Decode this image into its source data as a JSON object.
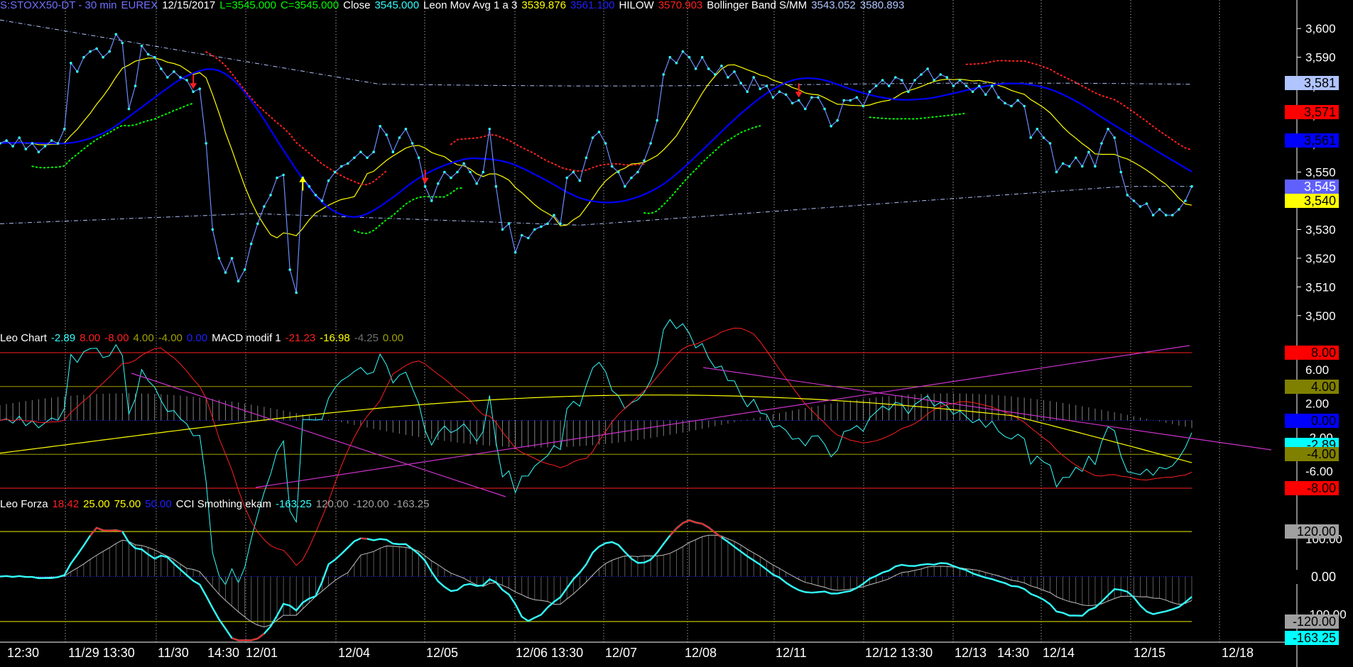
{
  "price_header": [
    {
      "text": "S:STOXX50-DT - 30 min",
      "color": "#7070ff"
    },
    {
      "text": "EUREX",
      "color": "#7070ff"
    },
    {
      "text": "12/15/2017",
      "color": "#ffffff"
    },
    {
      "text": "L=3545.000",
      "color": "#00ff00"
    },
    {
      "text": "C=3545.000",
      "color": "#00ff00"
    },
    {
      "text": "Close",
      "color": "#ffffff"
    },
    {
      "text": "3545.000",
      "color": "#33ffff"
    },
    {
      "text": "Leon Mov Avg 1 a 3",
      "color": "#ffffff"
    },
    {
      "text": "3539.876",
      "color": "#ffff00"
    },
    {
      "text": "3561.100",
      "color": "#2020ff"
    },
    {
      "text": "HILOW",
      "color": "#ffffff"
    },
    {
      "text": "3570.903",
      "color": "#ff2020"
    },
    {
      "text": "Bollinger Band S/MM",
      "color": "#ffffff"
    },
    {
      "text": "3543.052",
      "color": "#b0c4ff"
    },
    {
      "text": "3580.893",
      "color": "#b0c4ff"
    }
  ],
  "macd_header": [
    {
      "text": "Leo Chart",
      "color": "#ffffff"
    },
    {
      "text": "-2.89",
      "color": "#33ffff"
    },
    {
      "text": "8.00",
      "color": "#ff2020"
    },
    {
      "text": "-8.00",
      "color": "#ff2020"
    },
    {
      "text": "4.00",
      "color": "#a0a000"
    },
    {
      "text": "-4.00",
      "color": "#a0a000"
    },
    {
      "text": "0.00",
      "color": "#2020ff"
    },
    {
      "text": "MACD modif 1",
      "color": "#ffffff"
    },
    {
      "text": "-21.23",
      "color": "#ff2020"
    },
    {
      "text": "-16.98",
      "color": "#ffff00"
    },
    {
      "text": "-4.25",
      "color": "#707070"
    },
    {
      "text": "0.00",
      "color": "#a0a000"
    }
  ],
  "cci_header": [
    {
      "text": "Leo Forza",
      "color": "#ffffff"
    },
    {
      "text": "18.42",
      "color": "#ff2020"
    },
    {
      "text": "25.00",
      "color": "#ffff00"
    },
    {
      "text": "75.00",
      "color": "#ffff00"
    },
    {
      "text": "50.00",
      "color": "#2020ff"
    },
    {
      "text": "CCI Smothing ekam",
      "color": "#ffffff"
    },
    {
      "text": "-163.25",
      "color": "#33ffff"
    },
    {
      "text": "120.00",
      "color": "#a0a0a0"
    },
    {
      "text": "-120.00",
      "color": "#a0a0a0"
    },
    {
      "text": "-163.25",
      "color": "#a0a0a0"
    }
  ],
  "x_axis_labels": [
    "12:30",
    "11/29 13:30",
    "11/30",
    "14:30",
    "12/01",
    "12/04",
    "12/05",
    "12/06 13:30",
    "12/07",
    "12/08",
    "12/11",
    "12/12 13:30",
    "12/13",
    "14:30",
    "12/14",
    "12/15",
    "12/18"
  ],
  "price_axis_ticks": [
    "3,600",
    "3,590",
    "3,580",
    "3,570",
    "3,560",
    "3,550",
    "3,540",
    "3,530",
    "3,520",
    "3,510",
    "3,500"
  ],
  "price_tags": [
    {
      "text": "3,581",
      "bg": "#b0c4ff",
      "fg": "#000000",
      "value": 3581
    },
    {
      "text": "3,571",
      "bg": "#ff0000",
      "fg": "#000000",
      "value": 3571
    },
    {
      "text": "3,561",
      "bg": "#0000ff",
      "fg": "#000000",
      "value": 3561
    },
    {
      "text": "3,545",
      "bg": "#6060ff",
      "fg": "#ffffff",
      "value": 3545
    },
    {
      "text": "3,540",
      "bg": "#ffff00",
      "fg": "#000000",
      "value": 3540
    }
  ],
  "macd_axis_ticks": [
    "6.00",
    "2.00",
    "-2.00",
    "-6.00"
  ],
  "macd_tags": [
    {
      "text": "8.00",
      "bg": "#ff0000",
      "fg": "#000000",
      "value": 8
    },
    {
      "text": "4.00",
      "bg": "#808000",
      "fg": "#000000",
      "value": 4
    },
    {
      "text": "0.00",
      "bg": "#0000ff",
      "fg": "#000000",
      "value": 0
    },
    {
      "text": "-2.89",
      "bg": "#00ffff",
      "fg": "#000000",
      "value": -2.89
    },
    {
      "text": "-4.00",
      "bg": "#808000",
      "fg": "#000000",
      "value": -4
    },
    {
      "text": "-8.00",
      "bg": "#ff0000",
      "fg": "#000000",
      "value": -8
    }
  ],
  "cci_axis_ticks": [
    "100.00",
    "0.00",
    "-100.00"
  ],
  "cci_tags": [
    {
      "text": "120.00",
      "bg": "#a0a0a0",
      "fg": "#000000",
      "value": 120
    },
    {
      "text": "0.00",
      "bg": "#000000",
      "fg": "#ffffff",
      "value": 0
    },
    {
      "text": "-120.00",
      "bg": "#a0a0a0",
      "fg": "#000000",
      "value": -120
    },
    {
      "text": "-163.25",
      "bg": "#00ffff",
      "fg": "#000000",
      "value": -163.25
    }
  ],
  "colors": {
    "background": "#000000",
    "close": "#6b8cff",
    "close_marker": "#33ffff",
    "ma_yellow": "#ffff00",
    "ma_blue": "#0000ff",
    "hilow": "#ff2020",
    "hilow_support": "#00ff00",
    "bollinger": "#b0c4ff",
    "trendline": "#cc33cc",
    "macd_signal": "#ffff00",
    "macd_line": "#ff2020",
    "macd_fast": "#33ffff",
    "macd_hist": "#808080",
    "cci": "#33ffff",
    "cci_red": "#ff2020",
    "cci_slow": "#c0c0c0"
  },
  "chart_data": [
    {
      "type": "line",
      "panel": "price",
      "title": "S:STOXX50-DT - 30 min",
      "ylim": [
        3495,
        3605
      ],
      "close": [
        3560,
        3561,
        3559,
        3562,
        3558,
        3560,
        3557,
        3559,
        3561,
        3560,
        3565,
        3588,
        3585,
        3590,
        3592,
        3593,
        3590,
        3592,
        3598,
        3595,
        3572,
        3580,
        3594,
        3591,
        3590,
        3586,
        3583,
        3585,
        3583,
        3582,
        3578,
        3579,
        3560,
        3530,
        3520,
        3515,
        3520,
        3512,
        3516,
        3525,
        3532,
        3538,
        3542,
        3548,
        3549,
        3516,
        3508,
        3548,
        3545,
        3542,
        3540,
        3547,
        3550,
        3552,
        3553,
        3555,
        3557,
        3555,
        3557,
        3566,
        3563,
        3557,
        3562,
        3565,
        3560,
        3555,
        3545,
        3540,
        3546,
        3550,
        3548,
        3550,
        3553,
        3550,
        3546,
        3550,
        3565,
        3545,
        3530,
        3532,
        3522,
        3528,
        3527,
        3530,
        3531,
        3532,
        3535,
        3532,
        3548,
        3550,
        3547,
        3555,
        3562,
        3564,
        3560,
        3552,
        3550,
        3545,
        3548,
        3550,
        3554,
        3560,
        3568,
        3584,
        3590,
        3588,
        3592,
        3590,
        3586,
        3590,
        3586,
        3584,
        3587,
        3583,
        3585,
        3581,
        3578,
        3583,
        3579,
        3580,
        3576,
        3578,
        3577,
        3574,
        3575,
        3572,
        3576,
        3576,
        3572,
        3566,
        3568,
        3575,
        3575,
        3576,
        3573,
        3578,
        3580,
        3582,
        3580,
        3583,
        3582,
        3578,
        3582,
        3584,
        3586,
        3582,
        3584,
        3583,
        3580,
        3582,
        3580,
        3578,
        3580,
        3577,
        3580,
        3576,
        3574,
        3573,
        3575,
        3573,
        3562,
        3565,
        3562,
        3560,
        3550,
        3553,
        3552,
        3555,
        3552,
        3557,
        3552,
        3560,
        3565,
        3562,
        3550,
        3542,
        3540,
        3538,
        3539,
        3535,
        3537,
        3535,
        3535,
        3537,
        3540,
        3545
      ],
      "bollinger_upper": 3581,
      "bollinger_lower": 3543,
      "markers": [
        {
          "type": "sell",
          "near": "11/30 14:30"
        },
        {
          "type": "buy",
          "near": "12/04"
        },
        {
          "type": "sell",
          "near": "12/05"
        },
        {
          "type": "sell",
          "near": "12/11"
        }
      ]
    },
    {
      "type": "line",
      "panel": "macd",
      "title": "MACD modif 1",
      "ylim": [
        -9,
        9
      ],
      "levels": [
        8,
        4,
        0,
        -4,
        -8
      ]
    },
    {
      "type": "line",
      "panel": "cci",
      "title": "CCI Smothing ekam",
      "ylim": [
        -175,
        175
      ],
      "levels": [
        120,
        0,
        -120
      ]
    }
  ]
}
